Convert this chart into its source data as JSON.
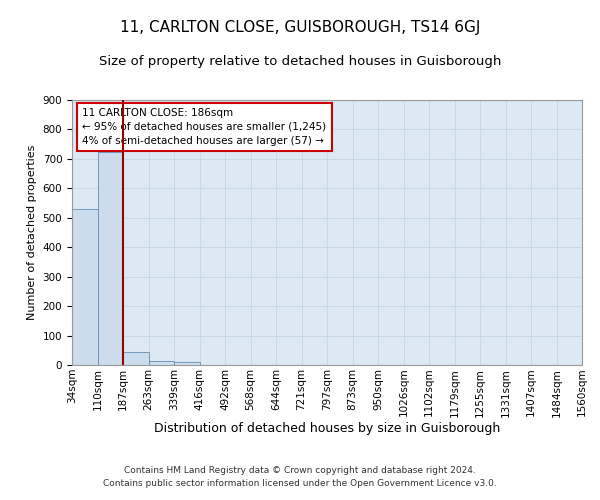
{
  "title": "11, CARLTON CLOSE, GUISBOROUGH, TS14 6GJ",
  "subtitle": "Size of property relative to detached houses in Guisborough",
  "xlabel": "Distribution of detached houses by size in Guisborough",
  "ylabel": "Number of detached properties",
  "footnote1": "Contains HM Land Registry data © Crown copyright and database right 2024.",
  "footnote2": "Contains public sector information licensed under the Open Government Licence v3.0.",
  "bin_labels": [
    "34sqm",
    "110sqm",
    "187sqm",
    "263sqm",
    "339sqm",
    "416sqm",
    "492sqm",
    "568sqm",
    "644sqm",
    "721sqm",
    "797sqm",
    "873sqm",
    "950sqm",
    "1026sqm",
    "1102sqm",
    "1179sqm",
    "1255sqm",
    "1331sqm",
    "1407sqm",
    "1484sqm",
    "1560sqm"
  ],
  "bar_heights": [
    530,
    725,
    45,
    12,
    10,
    0,
    0,
    0,
    0,
    0,
    0,
    0,
    0,
    0,
    0,
    0,
    0,
    0,
    0,
    0
  ],
  "bar_color": "#ccdcec",
  "bar_edge_color": "#6090b8",
  "property_line_color": "#990000",
  "annotation_text": "11 CARLTON CLOSE: 186sqm\n← 95% of detached houses are smaller (1,245)\n4% of semi-detached houses are larger (57) →",
  "annotation_box_color": "#ffffff",
  "annotation_box_edge_color": "#cc0000",
  "ylim": [
    0,
    900
  ],
  "yticks": [
    0,
    100,
    200,
    300,
    400,
    500,
    600,
    700,
    800,
    900
  ],
  "grid_color": "#c8d8e8",
  "background_color": "#dce8f4",
  "title_fontsize": 11,
  "subtitle_fontsize": 9.5,
  "annotation_fontsize": 7.5,
  "ylabel_fontsize": 8,
  "xlabel_fontsize": 9,
  "tick_fontsize": 7.5,
  "footnote_fontsize": 6.5
}
